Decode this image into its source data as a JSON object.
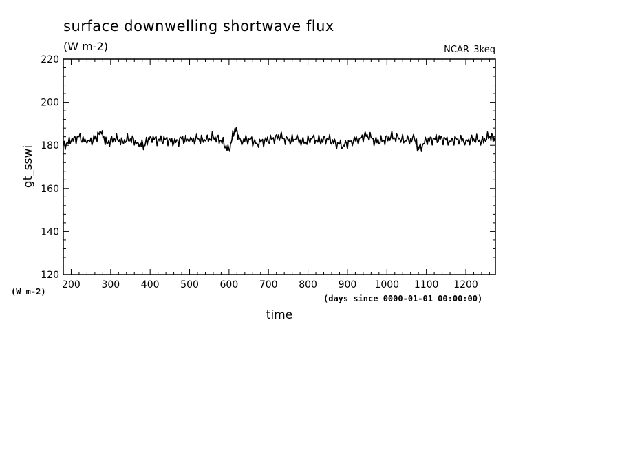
{
  "chart_data": {
    "type": "line",
    "title": "surface downwelling shortwave flux",
    "subtitle": "(W m-2)",
    "model": "NCAR_3keq",
    "xlabel": "time",
    "x_units": "(days since 0000-01-01 00:00:00)",
    "ylabel": "gt_sswi",
    "y_units": "(W m-2)",
    "xlim": [
      180,
      1275
    ],
    "ylim": [
      120,
      220
    ],
    "xticks": [
      200,
      300,
      400,
      500,
      600,
      700,
      800,
      900,
      1000,
      1100,
      1200
    ],
    "yticks": [
      120,
      140,
      160,
      180,
      200,
      220
    ],
    "grid": false,
    "series": [
      {
        "color": "#000000",
        "x": [
          180,
          200,
          220,
          240,
          260,
          275,
          290,
          310,
          330,
          350,
          370,
          385,
          400,
          420,
          440,
          460,
          480,
          500,
          520,
          540,
          560,
          580,
          600,
          615,
          630,
          650,
          670,
          690,
          710,
          730,
          750,
          770,
          790,
          810,
          830,
          850,
          870,
          890,
          910,
          930,
          950,
          970,
          990,
          1010,
          1030,
          1050,
          1070,
          1080,
          1100,
          1120,
          1140,
          1160,
          1180,
          1200,
          1220,
          1240,
          1260,
          1275
        ],
        "y": [
          180,
          182,
          184,
          181,
          183,
          186,
          181,
          183,
          182,
          183,
          181,
          180,
          184,
          182,
          183,
          181,
          183,
          182,
          183,
          182,
          184,
          182,
          178,
          188,
          182,
          183,
          181,
          182,
          183,
          184,
          182,
          183,
          181,
          183,
          182,
          183,
          181,
          180,
          182,
          183,
          185,
          182,
          182,
          184,
          183,
          182,
          183,
          178,
          182,
          183,
          183,
          182,
          183,
          182,
          183,
          182,
          184,
          183
        ]
      }
    ]
  }
}
